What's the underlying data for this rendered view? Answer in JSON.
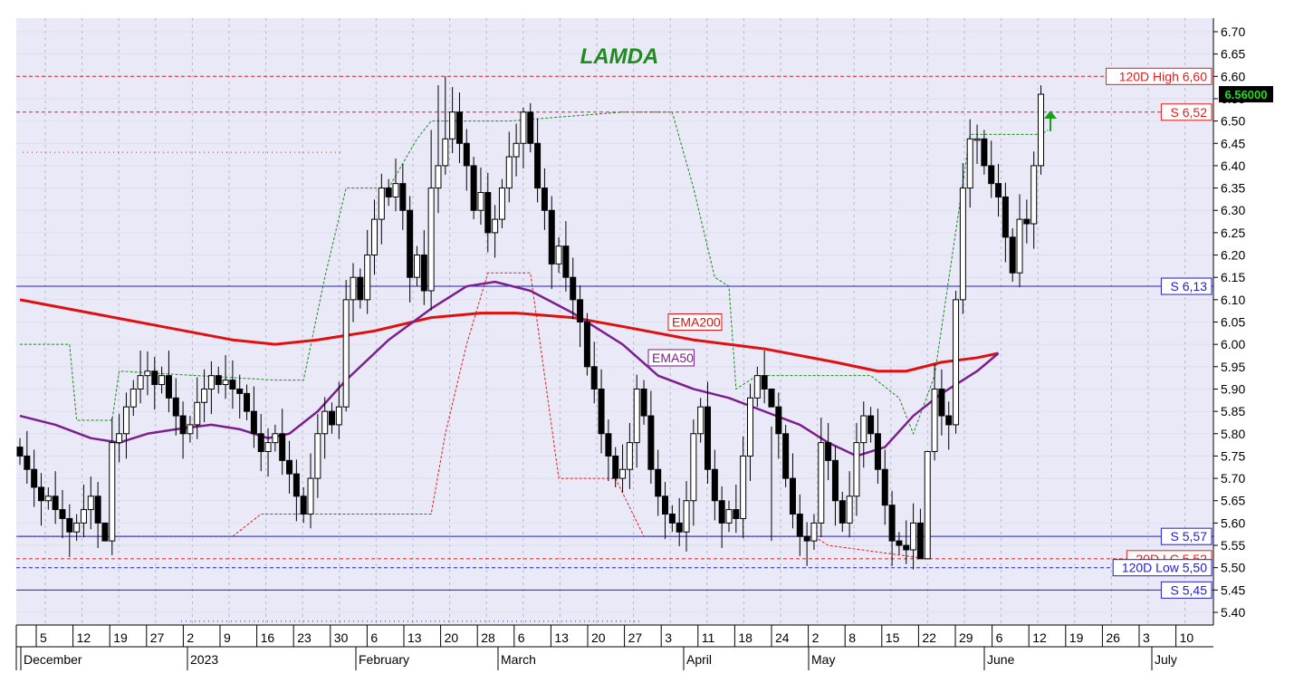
{
  "chart_data": {
    "type": "candlestick",
    "title": "LAMDA",
    "y_ticks": [
      "6.70",
      "6.65",
      "6.60",
      "6.55",
      "6.50",
      "6.45",
      "6.40",
      "6.35",
      "6.30",
      "6.25",
      "6.20",
      "6.15",
      "6.10",
      "6.05",
      "6.00",
      "5.95",
      "5.90",
      "5.85",
      "5.80",
      "5.75",
      "5.70",
      "5.65",
      "5.60",
      "5.55",
      "5.50",
      "5.45",
      "5.40"
    ],
    "ylim": [
      5.35,
      6.73
    ],
    "last_price": "6.56000",
    "date_ticks": [
      "5",
      "12",
      "19",
      "27",
      "2",
      "9",
      "16",
      "23",
      "30",
      "6",
      "13",
      "20",
      "28",
      "6",
      "13",
      "20",
      "27",
      "3",
      "11",
      "18",
      "24",
      "2",
      "8",
      "15",
      "22",
      "29",
      "6",
      "12",
      "19",
      "26",
      "3",
      "10"
    ],
    "month_labels": [
      "December",
      "2023",
      "February",
      "March",
      "April",
      "May",
      "June",
      "July"
    ],
    "levels": [
      {
        "label": "120D High 6,60",
        "value": 6.6,
        "color": "#e02020",
        "style": "dashed"
      },
      {
        "label": "S 6,52",
        "value": 6.52,
        "color": "#e02020",
        "style": "dashed"
      },
      {
        "label": "S 6,13",
        "value": 6.13,
        "color": "#2020d0",
        "style": "solid"
      },
      {
        "label": "S 5,57",
        "value": 5.57,
        "color": "#2020d0",
        "style": "solid"
      },
      {
        "label": "20D LC 5,52",
        "value": 5.52,
        "color": "#e02020",
        "style": "dashed"
      },
      {
        "label": "120D Low 5,50",
        "value": 5.5,
        "color": "#2020d0",
        "style": "dashed"
      },
      {
        "label": "S 5,45",
        "value": 5.45,
        "color": "#2020d0",
        "style": "solid"
      }
    ],
    "indicators": [
      {
        "name": "EMA200",
        "color": "#e01010",
        "values": [
          [
            0,
            6.1
          ],
          [
            10,
            6.07
          ],
          [
            20,
            6.04
          ],
          [
            30,
            6.01
          ],
          [
            36,
            6.0
          ],
          [
            42,
            6.01
          ],
          [
            50,
            6.03
          ],
          [
            58,
            6.06
          ],
          [
            65,
            6.07
          ],
          [
            70,
            6.07
          ],
          [
            78,
            6.06
          ],
          [
            85,
            6.04
          ],
          [
            95,
            6.01
          ],
          [
            105,
            5.99
          ],
          [
            115,
            5.96
          ],
          [
            121,
            5.94
          ],
          [
            125,
            5.94
          ],
          [
            130,
            5.96
          ],
          [
            135,
            5.97
          ],
          [
            138,
            5.98
          ]
        ]
      },
      {
        "name": "EMA50",
        "color": "#7b1f8f",
        "values": [
          [
            0,
            5.84
          ],
          [
            5,
            5.82
          ],
          [
            10,
            5.79
          ],
          [
            14,
            5.78
          ],
          [
            18,
            5.8
          ],
          [
            22,
            5.81
          ],
          [
            27,
            5.82
          ],
          [
            31,
            5.81
          ],
          [
            35,
            5.79
          ],
          [
            38,
            5.8
          ],
          [
            42,
            5.85
          ],
          [
            46,
            5.92
          ],
          [
            52,
            6.01
          ],
          [
            58,
            6.08
          ],
          [
            63,
            6.13
          ],
          [
            67,
            6.14
          ],
          [
            72,
            6.12
          ],
          [
            78,
            6.07
          ],
          [
            85,
            6.0
          ],
          [
            90,
            5.93
          ],
          [
            95,
            5.9
          ],
          [
            100,
            5.88
          ],
          [
            105,
            5.85
          ],
          [
            110,
            5.82
          ],
          [
            114,
            5.78
          ],
          [
            118,
            5.75
          ],
          [
            122,
            5.77
          ],
          [
            126,
            5.84
          ],
          [
            130,
            5.89
          ],
          [
            135,
            5.94
          ],
          [
            138,
            5.98
          ]
        ]
      }
    ],
    "annotations": [
      "EMA200",
      "EMA50"
    ]
  }
}
